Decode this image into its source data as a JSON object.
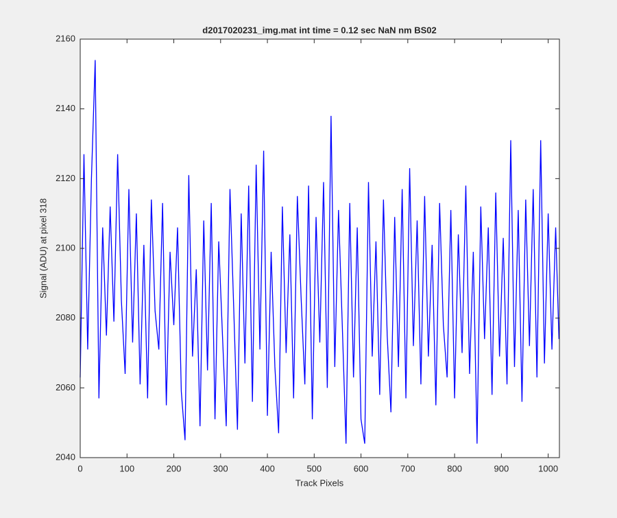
{
  "chart_data": {
    "type": "line",
    "title": "d2017020231_img.mat int time = 0.12 sec  NaN nm BS02",
    "x_label": "Track Pixels",
    "y_label": "Signal (ADU) at pixel 318",
    "x": [
      0,
      8,
      16,
      24,
      32,
      40,
      48,
      56,
      64,
      72,
      80,
      88,
      96,
      104,
      112,
      120,
      128,
      136,
      144,
      152,
      160,
      168,
      176,
      184,
      192,
      200,
      208,
      216,
      224,
      232,
      240,
      248,
      256,
      264,
      272,
      280,
      288,
      296,
      304,
      312,
      320,
      328,
      336,
      344,
      352,
      360,
      368,
      376,
      384,
      392,
      400,
      408,
      416,
      424,
      432,
      440,
      448,
      456,
      464,
      472,
      480,
      488,
      496,
      504,
      512,
      520,
      528,
      536,
      544,
      552,
      560,
      568,
      576,
      584,
      592,
      600,
      608,
      616,
      624,
      632,
      640,
      648,
      656,
      664,
      672,
      680,
      688,
      696,
      704,
      712,
      720,
      728,
      736,
      744,
      752,
      760,
      768,
      776,
      784,
      792,
      800,
      808,
      816,
      824,
      832,
      840,
      848,
      856,
      864,
      872,
      880,
      888,
      896,
      904,
      912,
      920,
      928,
      936,
      944,
      952,
      960,
      968,
      976,
      984,
      992,
      1000,
      1008,
      1016,
      1023
    ],
    "series": [
      {
        "name": "signal",
        "color": "#0000ff",
        "values": [
          2063,
          2127,
          2071,
          2120,
          2154,
          2057,
          2106,
          2075,
          2112,
          2079,
          2127,
          2085,
          2064,
          2117,
          2073,
          2110,
          2061,
          2101,
          2057,
          2114,
          2082,
          2071,
          2113,
          2055,
          2099,
          2078,
          2106,
          2059,
          2045,
          2121,
          2069,
          2094,
          2049,
          2108,
          2065,
          2113,
          2051,
          2102,
          2075,
          2049,
          2117,
          2083,
          2048,
          2110,
          2067,
          2118,
          2056,
          2124,
          2071,
          2128,
          2052,
          2099,
          2066,
          2047,
          2112,
          2070,
          2104,
          2057,
          2115,
          2086,
          2061,
          2118,
          2051,
          2109,
          2073,
          2119,
          2060,
          2138,
          2066,
          2111,
          2078,
          2044,
          2113,
          2063,
          2106,
          2051,
          2044,
          2119,
          2069,
          2102,
          2058,
          2114,
          2075,
          2053,
          2109,
          2066,
          2117,
          2057,
          2123,
          2072,
          2108,
          2061,
          2115,
          2069,
          2101,
          2055,
          2113,
          2078,
          2063,
          2111,
          2057,
          2104,
          2070,
          2118,
          2064,
          2099,
          2044,
          2112,
          2074,
          2106,
          2058,
          2116,
          2069,
          2103,
          2061,
          2131,
          2066,
          2111,
          2056,
          2114,
          2072,
          2117,
          2063,
          2131,
          2067,
          2110,
          2071,
          2106,
          2074
        ]
      }
    ],
    "xlim": [
      0,
      1024
    ],
    "xticks": [
      0,
      100,
      200,
      300,
      400,
      500,
      600,
      700,
      800,
      900,
      1000
    ],
    "ylim": [
      2040,
      2160
    ],
    "yticks": [
      2040,
      2060,
      2080,
      2100,
      2120,
      2140,
      2160
    ],
    "grid": false
  }
}
